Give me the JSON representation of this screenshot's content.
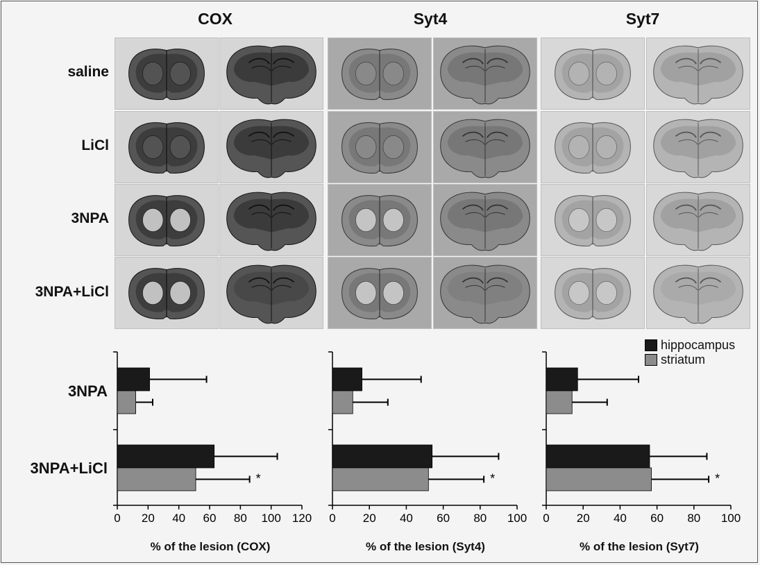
{
  "micrograph": {
    "columns": [
      "COX",
      "Syt4",
      "Syt7"
    ],
    "rows": [
      "saline",
      "LiCl",
      "3NPA",
      "3NPA+LiCl"
    ]
  },
  "legend": [
    {
      "label": "hippocampus",
      "color": "#1a1a1a"
    },
    {
      "label": "striatum",
      "color": "#8c8c8c"
    }
  ],
  "bar_rows": [
    "3NPA",
    "3NPA+LiCl"
  ],
  "chart_data": [
    {
      "type": "bar",
      "orientation": "horizontal",
      "categories": [
        "3NPA",
        "3NPA+LiCl"
      ],
      "series": [
        {
          "name": "hippocampus",
          "values": [
            21,
            63
          ],
          "errors": [
            37,
            41
          ]
        },
        {
          "name": "striatum",
          "values": [
            12,
            51
          ],
          "errors": [
            11,
            35
          ]
        }
      ],
      "significance": [
        "",
        "*"
      ],
      "xlabel": "% of the lesion (COX)",
      "xlim": [
        0,
        120
      ],
      "xticks": [
        0,
        20,
        40,
        60,
        80,
        100,
        120
      ]
    },
    {
      "type": "bar",
      "orientation": "horizontal",
      "categories": [
        "3NPA",
        "3NPA+LiCl"
      ],
      "series": [
        {
          "name": "hippocampus",
          "values": [
            16,
            54
          ],
          "errors": [
            32,
            36
          ]
        },
        {
          "name": "striatum",
          "values": [
            11,
            52
          ],
          "errors": [
            19,
            30
          ]
        }
      ],
      "significance": [
        "",
        "*"
      ],
      "xlabel": "% of the lesion (Syt4)",
      "xlim": [
        0,
        100
      ],
      "xticks": [
        0,
        20,
        40,
        60,
        80,
        100
      ]
    },
    {
      "type": "bar",
      "orientation": "horizontal",
      "categories": [
        "3NPA",
        "3NPA+LiCl"
      ],
      "series": [
        {
          "name": "hippocampus",
          "values": [
            17,
            56
          ],
          "errors": [
            33,
            31
          ]
        },
        {
          "name": "striatum",
          "values": [
            14,
            57
          ],
          "errors": [
            19,
            31
          ]
        }
      ],
      "significance": [
        "",
        "*"
      ],
      "xlabel": "% of the lesion (Syt7)",
      "xlim": [
        0,
        100
      ],
      "xticks": [
        0,
        20,
        40,
        60,
        80,
        100
      ]
    }
  ]
}
